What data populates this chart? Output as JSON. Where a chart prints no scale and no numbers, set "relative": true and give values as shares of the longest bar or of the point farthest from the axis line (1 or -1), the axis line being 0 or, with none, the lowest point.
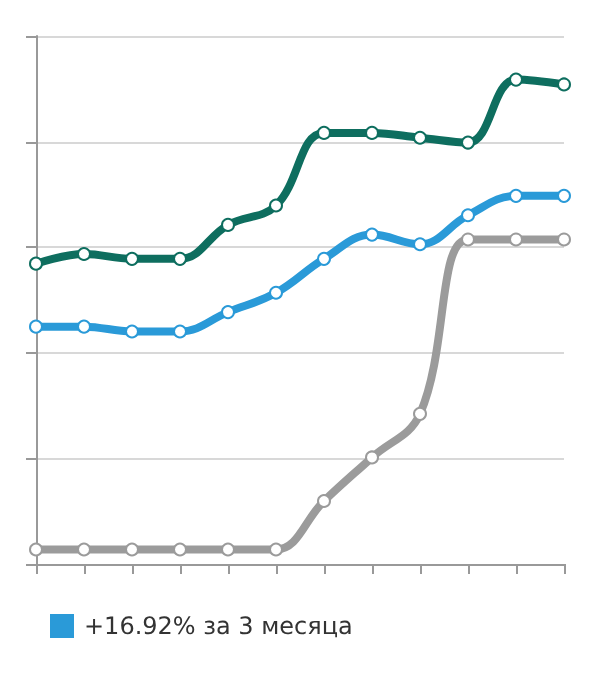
{
  "chart_data": {
    "type": "line",
    "relative": true,
    "categories": [
      null,
      null,
      null,
      null,
      null,
      null,
      null,
      null,
      null,
      null,
      null,
      null
    ],
    "series": [
      {
        "color": "#0e6e5f",
        "values": [
          0.62,
          0.64,
          0.63,
          0.63,
          0.7,
          0.74,
          0.89,
          0.89,
          0.88,
          0.87,
          1,
          0.99
        ]
      },
      {
        "name": "+16.92% за 3 месяца",
        "color": "#2a9ad8",
        "values": [
          0.49,
          0.49,
          0.48,
          0.48,
          0.52,
          0.56,
          0.63,
          0.68,
          0.66,
          0.72,
          0.76,
          0.76
        ]
      },
      {
        "color": "#9b9b9b",
        "values": [
          0.03,
          0.03,
          0.03,
          0.03,
          0.03,
          0.03,
          0.13,
          0.22,
          0.31,
          0.67,
          0.67,
          0.67
        ]
      }
    ],
    "grid": "y",
    "legend": "bottom left",
    "marker": "circle",
    "line_style": "solid"
  }
}
